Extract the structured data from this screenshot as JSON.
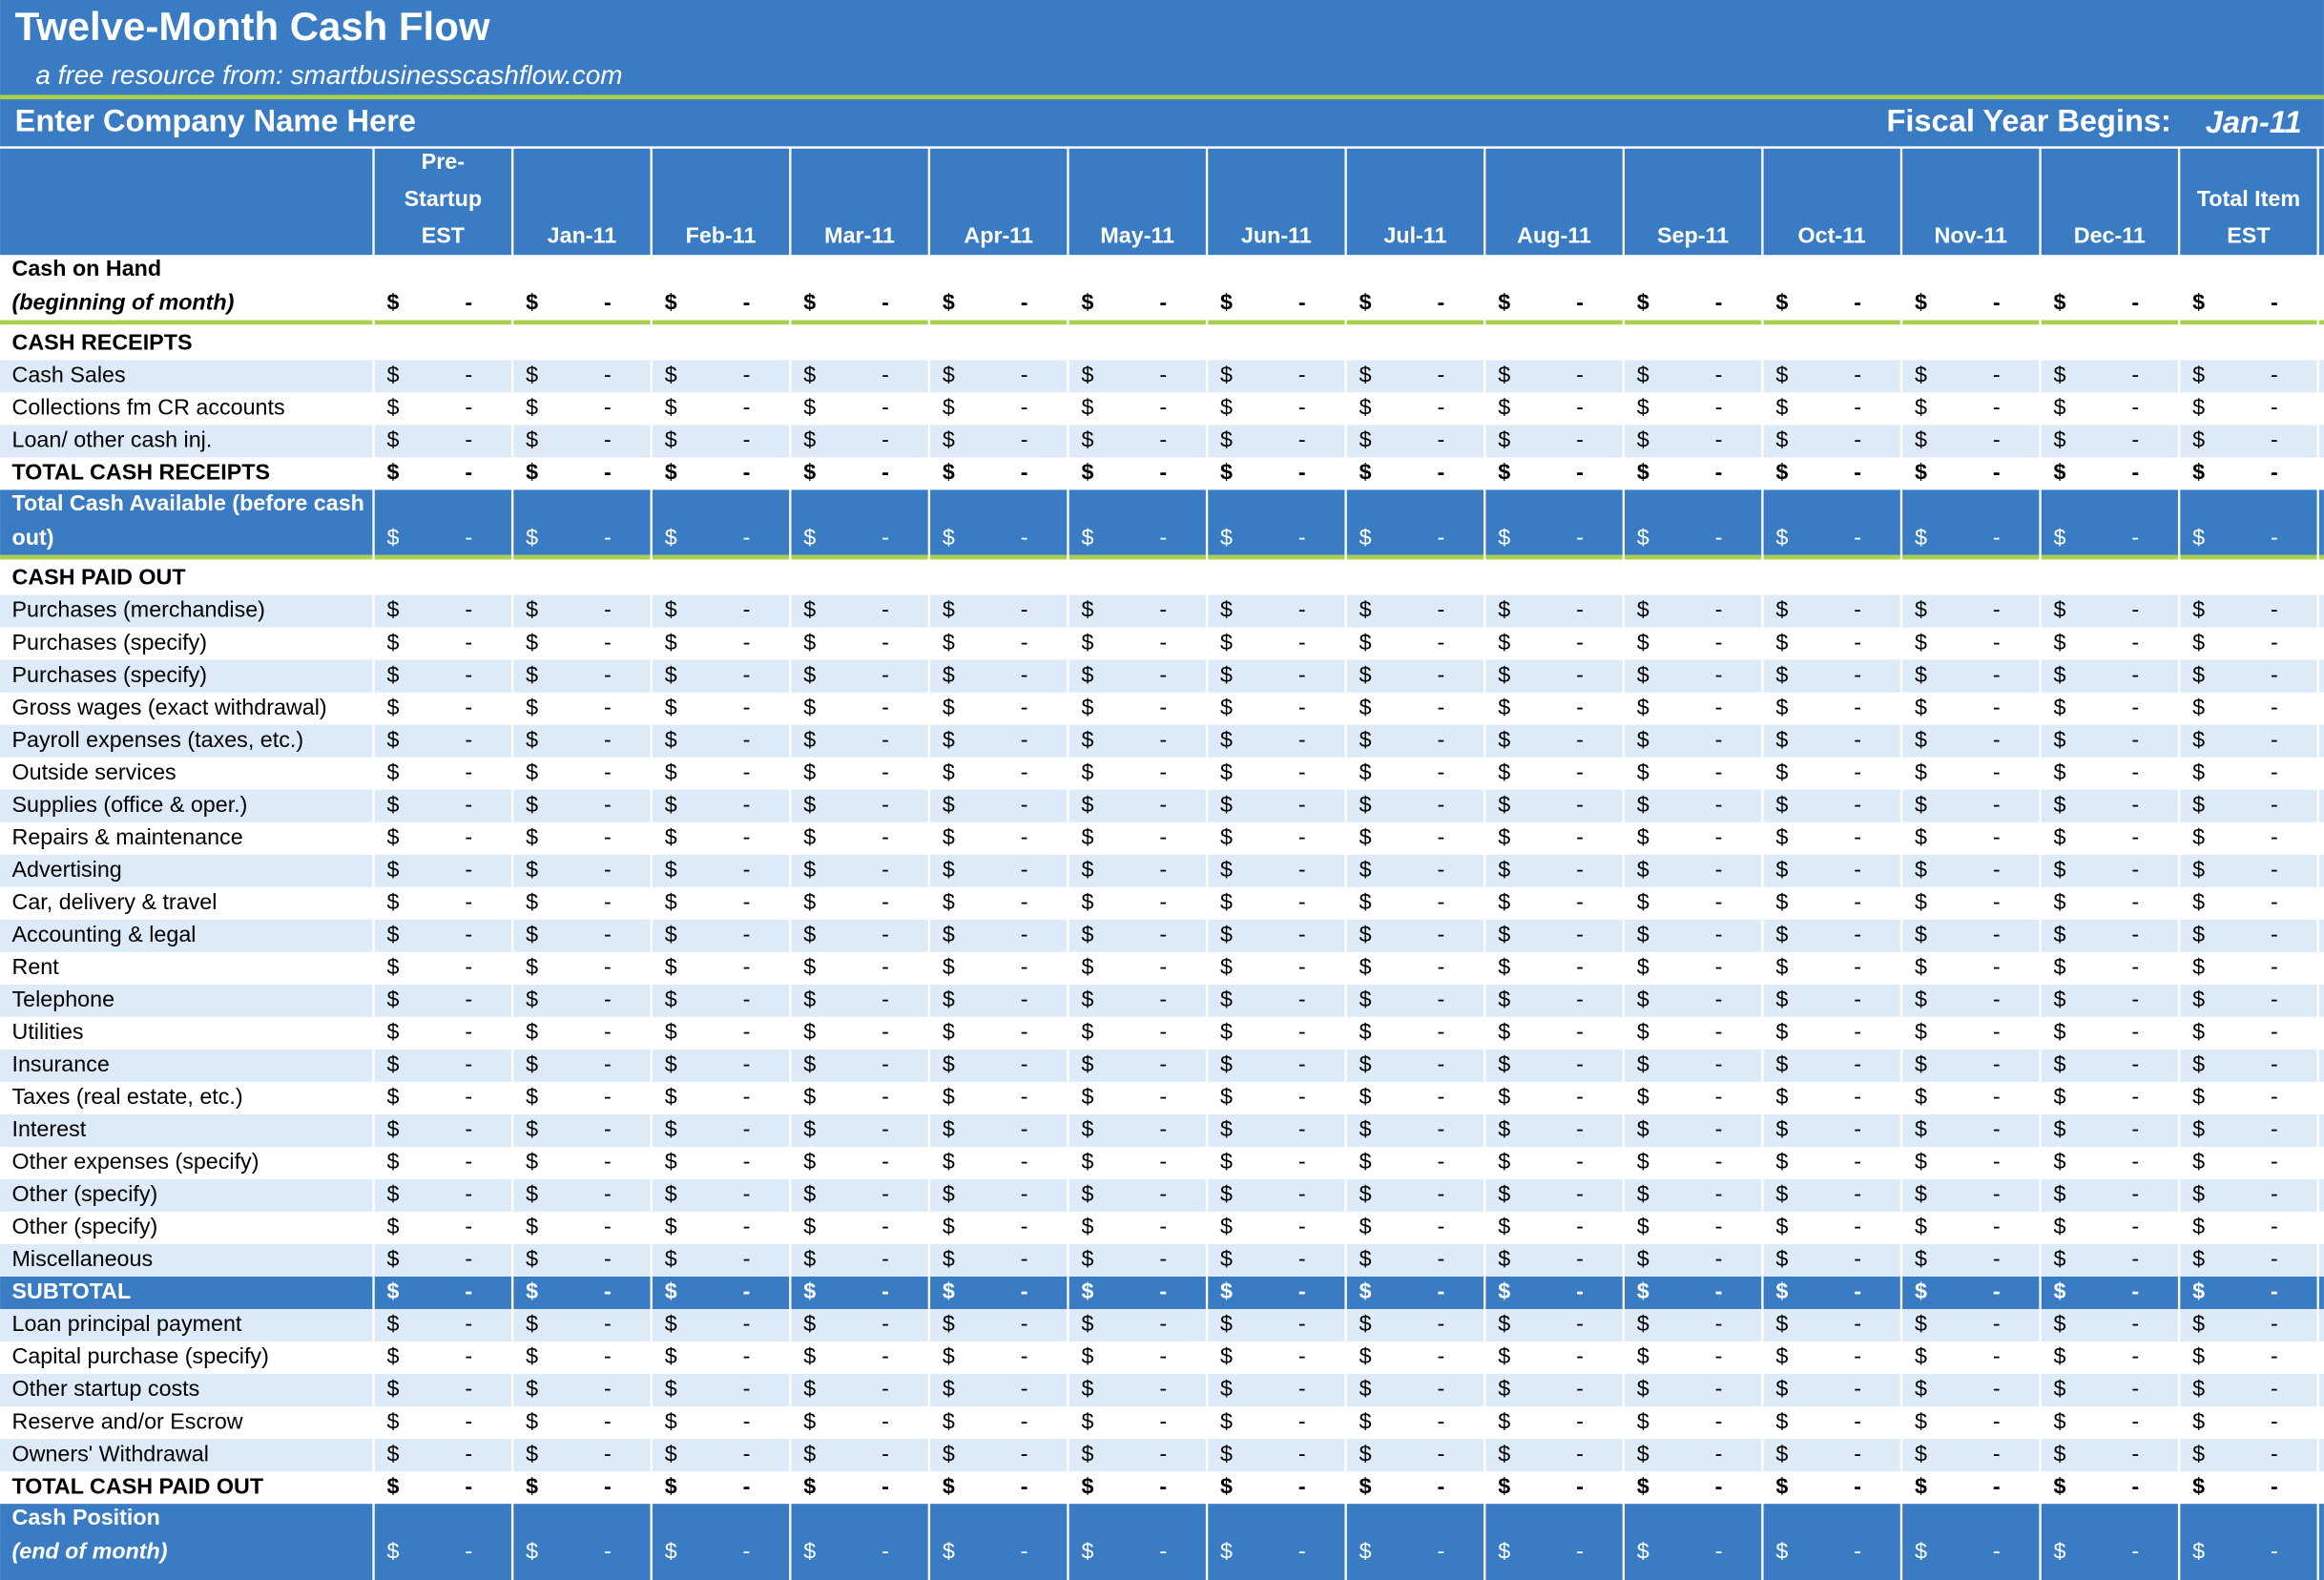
{
  "header": {
    "title": "Twelve-Month Cash Flow",
    "subtitle": "a free resource from:  smartbusinesscashflow.com",
    "company": "Enter Company Name Here",
    "fiscal_label": "Fiscal Year Begins:",
    "fiscal_value": "Jan-11"
  },
  "table": {
    "currency": "$",
    "columns": [
      [
        "Pre-",
        "Startup",
        "EST"
      ],
      [
        "Jan-11"
      ],
      [
        "Feb-11"
      ],
      [
        "Mar-11"
      ],
      [
        "Apr-11"
      ],
      [
        "May-11"
      ],
      [
        "Jun-11"
      ],
      [
        "Jul-11"
      ],
      [
        "Aug-11"
      ],
      [
        "Sep-11"
      ],
      [
        "Oct-11"
      ],
      [
        "Nov-11"
      ],
      [
        "Dec-11"
      ],
      [
        "Total Item",
        "EST"
      ]
    ],
    "rows": [
      {
        "label": [
          "Cash on Hand",
          "(beginning of month)"
        ],
        "style": "opening",
        "note_italic": true,
        "values": [
          "-",
          "-",
          "-",
          "-",
          "-",
          "-",
          "-",
          "-",
          "-",
          "-",
          "-",
          "-",
          "-",
          "-"
        ]
      },
      {
        "label": [
          "CASH RECEIPTS"
        ],
        "style": "section"
      },
      {
        "label": [
          "Cash Sales"
        ],
        "style": "item",
        "values": [
          "-",
          "-",
          "-",
          "-",
          "-",
          "-",
          "-",
          "-",
          "-",
          "-",
          "-",
          "-",
          "-",
          "-"
        ]
      },
      {
        "label": [
          "Collections fm CR accounts"
        ],
        "style": "item",
        "values": [
          "-",
          "-",
          "-",
          "-",
          "-",
          "-",
          "-",
          "-",
          "-",
          "-",
          "-",
          "-",
          "-",
          "-"
        ]
      },
      {
        "label": [
          "Loan/ other cash inj."
        ],
        "style": "item",
        "values": [
          "-",
          "-",
          "-",
          "-",
          "-",
          "-",
          "-",
          "-",
          "-",
          "-",
          "-",
          "-",
          "-",
          "-"
        ]
      },
      {
        "label": [
          "TOTAL CASH RECEIPTS"
        ],
        "style": "total",
        "values": [
          "-",
          "-",
          "-",
          "-",
          "-",
          "-",
          "-",
          "-",
          "-",
          "-",
          "-",
          "-",
          "-",
          "-"
        ]
      },
      {
        "label": [
          "Total Cash Available (before cash",
          "out)"
        ],
        "style": "band",
        "values": [
          "-",
          "-",
          "-",
          "-",
          "-",
          "-",
          "-",
          "-",
          "-",
          "-",
          "-",
          "-",
          "-",
          "-"
        ]
      },
      {
        "label": [
          "CASH PAID OUT"
        ],
        "style": "section"
      },
      {
        "label": [
          "Purchases (merchandise)"
        ],
        "style": "item",
        "values": [
          "-",
          "-",
          "-",
          "-",
          "-",
          "-",
          "-",
          "-",
          "-",
          "-",
          "-",
          "-",
          "-",
          "-"
        ]
      },
      {
        "label": [
          "Purchases (specify)"
        ],
        "style": "item",
        "values": [
          "-",
          "-",
          "-",
          "-",
          "-",
          "-",
          "-",
          "-",
          "-",
          "-",
          "-",
          "-",
          "-",
          "-"
        ]
      },
      {
        "label": [
          "Purchases (specify)"
        ],
        "style": "item",
        "values": [
          "-",
          "-",
          "-",
          "-",
          "-",
          "-",
          "-",
          "-",
          "-",
          "-",
          "-",
          "-",
          "-",
          "-"
        ]
      },
      {
        "label": [
          "Gross wages (exact withdrawal)"
        ],
        "style": "item",
        "values": [
          "-",
          "-",
          "-",
          "-",
          "-",
          "-",
          "-",
          "-",
          "-",
          "-",
          "-",
          "-",
          "-",
          "-"
        ]
      },
      {
        "label": [
          "Payroll expenses (taxes, etc.)"
        ],
        "style": "item",
        "values": [
          "-",
          "-",
          "-",
          "-",
          "-",
          "-",
          "-",
          "-",
          "-",
          "-",
          "-",
          "-",
          "-",
          "-"
        ]
      },
      {
        "label": [
          "Outside services"
        ],
        "style": "item",
        "values": [
          "-",
          "-",
          "-",
          "-",
          "-",
          "-",
          "-",
          "-",
          "-",
          "-",
          "-",
          "-",
          "-",
          "-"
        ]
      },
      {
        "label": [
          "Supplies (office & oper.)"
        ],
        "style": "item",
        "values": [
          "-",
          "-",
          "-",
          "-",
          "-",
          "-",
          "-",
          "-",
          "-",
          "-",
          "-",
          "-",
          "-",
          "-"
        ]
      },
      {
        "label": [
          "Repairs & maintenance"
        ],
        "style": "item",
        "values": [
          "-",
          "-",
          "-",
          "-",
          "-",
          "-",
          "-",
          "-",
          "-",
          "-",
          "-",
          "-",
          "-",
          "-"
        ]
      },
      {
        "label": [
          "Advertising"
        ],
        "style": "item",
        "values": [
          "-",
          "-",
          "-",
          "-",
          "-",
          "-",
          "-",
          "-",
          "-",
          "-",
          "-",
          "-",
          "-",
          "-"
        ]
      },
      {
        "label": [
          "Car, delivery & travel"
        ],
        "style": "item",
        "values": [
          "-",
          "-",
          "-",
          "-",
          "-",
          "-",
          "-",
          "-",
          "-",
          "-",
          "-",
          "-",
          "-",
          "-"
        ]
      },
      {
        "label": [
          "Accounting & legal"
        ],
        "style": "item",
        "values": [
          "-",
          "-",
          "-",
          "-",
          "-",
          "-",
          "-",
          "-",
          "-",
          "-",
          "-",
          "-",
          "-",
          "-"
        ]
      },
      {
        "label": [
          "Rent"
        ],
        "style": "item",
        "values": [
          "-",
          "-",
          "-",
          "-",
          "-",
          "-",
          "-",
          "-",
          "-",
          "-",
          "-",
          "-",
          "-",
          "-"
        ]
      },
      {
        "label": [
          "Telephone"
        ],
        "style": "item",
        "values": [
          "-",
          "-",
          "-",
          "-",
          "-",
          "-",
          "-",
          "-",
          "-",
          "-",
          "-",
          "-",
          "-",
          "-"
        ]
      },
      {
        "label": [
          "Utilities"
        ],
        "style": "item",
        "values": [
          "-",
          "-",
          "-",
          "-",
          "-",
          "-",
          "-",
          "-",
          "-",
          "-",
          "-",
          "-",
          "-",
          "-"
        ]
      },
      {
        "label": [
          "Insurance"
        ],
        "style": "item",
        "values": [
          "-",
          "-",
          "-",
          "-",
          "-",
          "-",
          "-",
          "-",
          "-",
          "-",
          "-",
          "-",
          "-",
          "-"
        ]
      },
      {
        "label": [
          "Taxes (real estate, etc.)"
        ],
        "style": "item",
        "values": [
          "-",
          "-",
          "-",
          "-",
          "-",
          "-",
          "-",
          "-",
          "-",
          "-",
          "-",
          "-",
          "-",
          "-"
        ]
      },
      {
        "label": [
          "Interest"
        ],
        "style": "item",
        "values": [
          "-",
          "-",
          "-",
          "-",
          "-",
          "-",
          "-",
          "-",
          "-",
          "-",
          "-",
          "-",
          "-",
          "-"
        ]
      },
      {
        "label": [
          "Other expenses (specify)"
        ],
        "style": "item",
        "values": [
          "-",
          "-",
          "-",
          "-",
          "-",
          "-",
          "-",
          "-",
          "-",
          "-",
          "-",
          "-",
          "-",
          "-"
        ]
      },
      {
        "label": [
          "Other (specify)"
        ],
        "style": "item",
        "values": [
          "-",
          "-",
          "-",
          "-",
          "-",
          "-",
          "-",
          "-",
          "-",
          "-",
          "-",
          "-",
          "-",
          "-"
        ]
      },
      {
        "label": [
          "Other (specify)"
        ],
        "style": "item",
        "values": [
          "-",
          "-",
          "-",
          "-",
          "-",
          "-",
          "-",
          "-",
          "-",
          "-",
          "-",
          "-",
          "-",
          "-"
        ]
      },
      {
        "label": [
          "Miscellaneous"
        ],
        "style": "item",
        "values": [
          "-",
          "-",
          "-",
          "-",
          "-",
          "-",
          "-",
          "-",
          "-",
          "-",
          "-",
          "-",
          "-",
          "-"
        ]
      },
      {
        "label": [
          "SUBTOTAL"
        ],
        "style": "subtotal",
        "values": [
          "-",
          "-",
          "-",
          "-",
          "-",
          "-",
          "-",
          "-",
          "-",
          "-",
          "-",
          "-",
          "-",
          "-"
        ]
      },
      {
        "label": [
          "Loan principal payment"
        ],
        "style": "item",
        "values": [
          "-",
          "-",
          "-",
          "-",
          "-",
          "-",
          "-",
          "-",
          "-",
          "-",
          "-",
          "-",
          "-",
          "-"
        ]
      },
      {
        "label": [
          "Capital purchase (specify)"
        ],
        "style": "item",
        "values": [
          "-",
          "-",
          "-",
          "-",
          "-",
          "-",
          "-",
          "-",
          "-",
          "-",
          "-",
          "-",
          "-",
          "-"
        ]
      },
      {
        "label": [
          "Other startup costs"
        ],
        "style": "item",
        "values": [
          "-",
          "-",
          "-",
          "-",
          "-",
          "-",
          "-",
          "-",
          "-",
          "-",
          "-",
          "-",
          "-",
          "-"
        ]
      },
      {
        "label": [
          "Reserve and/or Escrow"
        ],
        "style": "item",
        "values": [
          "-",
          "-",
          "-",
          "-",
          "-",
          "-",
          "-",
          "-",
          "-",
          "-",
          "-",
          "-",
          "-",
          "-"
        ]
      },
      {
        "label": [
          "Owners' Withdrawal"
        ],
        "style": "item",
        "values": [
          "-",
          "-",
          "-",
          "-",
          "-",
          "-",
          "-",
          "-",
          "-",
          "-",
          "-",
          "-",
          "-",
          "-"
        ]
      },
      {
        "label": [
          "TOTAL CASH PAID OUT"
        ],
        "style": "total",
        "values": [
          "-",
          "-",
          "-",
          "-",
          "-",
          "-",
          "-",
          "-",
          "-",
          "-",
          "-",
          "-",
          "-",
          "-"
        ]
      },
      {
        "label": [
          "Cash Position",
          "(end of month)"
        ],
        "style": "band",
        "note_italic": true,
        "values": [
          "-",
          "-",
          "-",
          "-",
          "-",
          "-",
          "-",
          "-",
          "-",
          "-",
          "-",
          "-",
          "-",
          "-"
        ]
      }
    ]
  }
}
